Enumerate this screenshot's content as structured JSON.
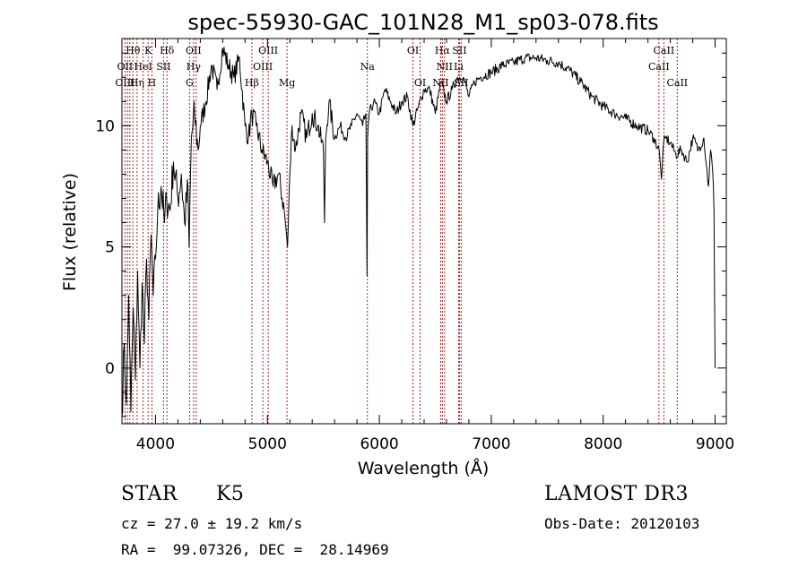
{
  "chart_data": {
    "type": "line",
    "title": "spec-55930-GAC_101N28_M1_sp03-078.fits",
    "xlabel": "Wavelength (Å)",
    "ylabel": "Flux (relative)",
    "xlim": [
      3700,
      9100
    ],
    "ylim": [
      -2.3,
      13.6
    ],
    "xticks": [
      4000,
      5000,
      6000,
      7000,
      8000,
      9000
    ],
    "yticks": [
      0,
      5,
      10
    ],
    "grid": false,
    "series": [
      {
        "x": [
          3700,
          3720,
          3740,
          3760,
          3780,
          3800,
          3820,
          3840,
          3860,
          3880,
          3900,
          3920,
          3940,
          3960,
          3980,
          4000,
          4020,
          4050,
          4080,
          4100,
          4130,
          4160,
          4200,
          4230,
          4260,
          4290,
          4300,
          4320,
          4350,
          4380,
          4400,
          4450,
          4500,
          4550,
          4600,
          4650,
          4700,
          4750,
          4800,
          4830,
          4860,
          4900,
          4950,
          5000,
          5050,
          5100,
          5150,
          5170,
          5180,
          5200,
          5220,
          5250,
          5300,
          5350,
          5400,
          5450,
          5500,
          5510,
          5520,
          5550,
          5600,
          5650,
          5700,
          5750,
          5800,
          5850,
          5880,
          5890,
          5895,
          5900,
          5910,
          5950,
          6000,
          6050,
          6100,
          6150,
          6200,
          6250,
          6300,
          6350,
          6400,
          6450,
          6500,
          6550,
          6600,
          6650,
          6700,
          6750,
          6800,
          6850,
          6900,
          7000,
          7100,
          7200,
          7300,
          7400,
          7500,
          7600,
          7700,
          7800,
          7900,
          8000,
          8100,
          8200,
          8300,
          8400,
          8450,
          8500,
          8520,
          8540,
          8560,
          8600,
          8650,
          8700,
          8750,
          8800,
          8850,
          8900,
          8940,
          8960,
          8980,
          8985,
          8990,
          8995,
          9000
        ],
        "y": [
          -2.0,
          1.0,
          -1.5,
          3.0,
          -1.8,
          2.5,
          -0.5,
          4.0,
          0.0,
          3.5,
          1.0,
          4.5,
          2.0,
          5.5,
          3.0,
          4.5,
          6.5,
          7.5,
          6.0,
          7.0,
          6.5,
          8.5,
          7.0,
          8.0,
          6.0,
          7.5,
          5.0,
          9.5,
          10.5,
          9.0,
          10.0,
          11.0,
          12.5,
          11.5,
          13.2,
          12.5,
          12.0,
          12.8,
          10.0,
          9.5,
          10.5,
          10.0,
          9.0,
          8.5,
          7.5,
          8.0,
          6.5,
          5.5,
          5.0,
          8.0,
          10.0,
          9.0,
          10.5,
          9.5,
          10.5,
          10.0,
          9.0,
          6.0,
          9.5,
          11.0,
          9.5,
          10.0,
          9.5,
          10.0,
          10.5,
          10.0,
          10.5,
          3.8,
          9.5,
          10.0,
          10.5,
          11.0,
          10.5,
          11.5,
          11.0,
          10.5,
          11.0,
          11.2,
          10.0,
          10.8,
          11.5,
          11.5,
          10.5,
          11.8,
          11.0,
          11.5,
          12.0,
          12.0,
          11.2,
          11.8,
          12.0,
          12.2,
          12.5,
          12.6,
          12.8,
          12.8,
          12.7,
          12.6,
          12.3,
          11.8,
          11.2,
          10.8,
          10.5,
          10.3,
          10.0,
          9.8,
          9.5,
          9.0,
          7.8,
          9.3,
          9.5,
          9.3,
          8.8,
          9.0,
          8.5,
          9.5,
          9.0,
          9.5,
          7.5,
          9.0,
          8.0,
          7.5,
          6.5,
          3.0,
          0.0
        ]
      }
    ],
    "spectral_lines": [
      {
        "label": "Hθ",
        "wave": 3798,
        "row": 0
      },
      {
        "label": "K",
        "wave": 3934,
        "row": 0
      },
      {
        "label": "Hδ",
        "wave": 4102,
        "row": 0
      },
      {
        "label": "OII",
        "wave": 4340,
        "row": 0
      },
      {
        "label": "OIII",
        "wave": 5007,
        "row": 0
      },
      {
        "label": "OI",
        "wave": 6300,
        "row": 0
      },
      {
        "label": "Hα",
        "wave": 6563,
        "row": 0
      },
      {
        "label": "SII",
        "wave": 6716,
        "row": 0
      },
      {
        "label": "CaII",
        "wave": 8542,
        "row": 0
      },
      {
        "label": "OII",
        "wave": 3727,
        "row": 1
      },
      {
        "label": "HeI",
        "wave": 3889,
        "row": 1
      },
      {
        "label": "SII",
        "wave": 4072,
        "row": 1
      },
      {
        "label": "Hγ",
        "wave": 4340,
        "row": 1
      },
      {
        "label": "OIII",
        "wave": 4959,
        "row": 1
      },
      {
        "label": "Na",
        "wave": 5893,
        "row": 1
      },
      {
        "label": "NII",
        "wave": 6583,
        "row": 1
      },
      {
        "label": "Li",
        "wave": 6708,
        "row": 1
      },
      {
        "label": "CaII",
        "wave": 8498,
        "row": 1
      },
      {
        "label": "OIII",
        "wave": 3727,
        "row": 2
      },
      {
        "label": "Hη",
        "wave": 3835,
        "row": 2
      },
      {
        "label": "H",
        "wave": 3968,
        "row": 2
      },
      {
        "label": "G",
        "wave": 4304,
        "row": 2
      },
      {
        "label": "Hβ",
        "wave": 4861,
        "row": 2
      },
      {
        "label": "Mg",
        "wave": 5175,
        "row": 2
      },
      {
        "label": "OI",
        "wave": 6364,
        "row": 2
      },
      {
        "label": "NII",
        "wave": 6548,
        "row": 2
      },
      {
        "label": "SII",
        "wave": 6731,
        "row": 2
      },
      {
        "label": "CaII",
        "wave": 8662,
        "row": 2
      }
    ],
    "line_markers": [
      3727,
      3750,
      3770,
      3798,
      3835,
      3889,
      3934,
      3968,
      4072,
      4102,
      4304,
      4340,
      4363,
      4861,
      4959,
      5007,
      5175,
      5893,
      6300,
      6364,
      6548,
      6563,
      6583,
      6708,
      6716,
      6731,
      8498,
      8542,
      8662
    ],
    "line_marker_color": "#b22222"
  },
  "info": {
    "class": "STAR",
    "subclass": "K5",
    "survey": "LAMOST DR3",
    "cz": "cz = 27.0 ± 19.2 km/s",
    "obsdate": "Obs-Date: 20120103",
    "radec": "RA =  99.07326, DEC =  28.14969"
  }
}
